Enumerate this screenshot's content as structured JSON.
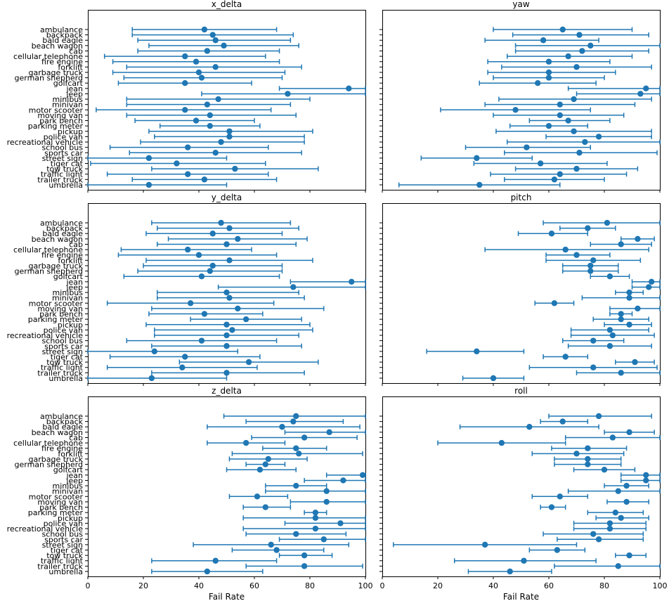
{
  "chart_data": {
    "type": "errorbar",
    "categories": [
      "ambulance",
      "backpack",
      "bald eagle",
      "beach wagon",
      "cab",
      "cellular telephone",
      "fire engine",
      "forklift",
      "garbage truck",
      "german shepherd",
      "golfcart",
      "jean",
      "jeep",
      "minibus",
      "minivan",
      "motor scooter",
      "moving van",
      "park bench",
      "parking meter",
      "pickup",
      "police van",
      "recreational vehicle",
      "school bus",
      "sports car",
      "street sign",
      "tiger cat",
      "tow truck",
      "traffic light",
      "trailer truck",
      "umbrella"
    ],
    "xlabel": "Fail Rate",
    "xlim": [
      0,
      100
    ],
    "xticks": [
      0,
      20,
      40,
      60,
      80,
      100
    ],
    "color": "#1f77b4",
    "panels": [
      {
        "title": "x_delta",
        "mean": [
          42,
          45,
          46,
          49,
          43,
          35,
          39,
          46,
          40,
          41,
          35,
          94,
          72,
          47,
          43,
          35,
          44,
          39,
          44,
          51,
          51,
          48,
          36,
          46,
          22,
          32,
          53,
          36,
          42,
          22
        ],
        "lower": [
          16,
          16,
          18,
          22,
          18,
          6,
          9,
          14,
          9,
          13,
          11,
          69,
          41,
          14,
          14,
          3,
          14,
          17,
          26,
          22,
          24,
          19,
          8,
          15,
          0,
          1,
          23,
          7,
          16,
          0
        ],
        "upper": [
          68,
          74,
          73,
          76,
          69,
          64,
          69,
          77,
          71,
          70,
          59,
          100,
          100,
          80,
          73,
          66,
          75,
          60,
          62,
          81,
          78,
          78,
          65,
          77,
          50,
          64,
          83,
          65,
          68,
          50
        ]
      },
      {
        "title": "yaw",
        "mean": [
          65,
          71,
          58,
          75,
          72,
          67,
          60,
          70,
          60,
          60,
          56,
          95,
          93,
          69,
          64,
          48,
          64,
          67,
          60,
          69,
          78,
          73,
          52,
          71,
          34,
          57,
          70,
          64,
          62,
          35
        ],
        "lower": [
          40,
          47,
          37,
          48,
          48,
          45,
          38,
          43,
          38,
          40,
          35,
          67,
          70,
          42,
          37,
          21,
          40,
          53,
          46,
          41,
          59,
          45,
          30,
          44,
          14,
          33,
          48,
          39,
          44,
          6
        ],
        "upper": [
          90,
          96,
          78,
          100,
          96,
          90,
          82,
          97,
          84,
          80,
          77,
          100,
          100,
          97,
          91,
          75,
          87,
          82,
          74,
          97,
          97,
          100,
          75,
          99,
          54,
          81,
          92,
          88,
          80,
          64
        ]
      },
      {
        "title": "y_delta",
        "mean": [
          48,
          51,
          45,
          54,
          50,
          36,
          40,
          51,
          45,
          44,
          41,
          95,
          74,
          50,
          51,
          37,
          54,
          42,
          57,
          50,
          52,
          50,
          41,
          50,
          24,
          35,
          58,
          34,
          50,
          23
        ],
        "lower": [
          23,
          25,
          21,
          29,
          25,
          12,
          11,
          21,
          20,
          18,
          13,
          73,
          47,
          25,
          25,
          7,
          23,
          22,
          37,
          21,
          24,
          24,
          14,
          23,
          0,
          8,
          33,
          7,
          23,
          0
        ],
        "upper": [
          73,
          76,
          70,
          79,
          75,
          59,
          68,
          81,
          70,
          70,
          69,
          100,
          100,
          76,
          78,
          67,
          85,
          63,
          77,
          80,
          81,
          76,
          68,
          77,
          54,
          62,
          83,
          61,
          78,
          50
        ]
      },
      {
        "title": "pitch",
        "mean": [
          81,
          74,
          61,
          92,
          86,
          66,
          70,
          76,
          75,
          75,
          82,
          97,
          96,
          89,
          89,
          62,
          92,
          86,
          86,
          89,
          82,
          83,
          76,
          82,
          34,
          66,
          91,
          76,
          86,
          40
        ],
        "lower": [
          58,
          64,
          49,
          86,
          75,
          37,
          59,
          59,
          65,
          65,
          75,
          90,
          90,
          84,
          72,
          55,
          82,
          82,
          76,
          80,
          68,
          68,
          65,
          67,
          16,
          58,
          84,
          53,
          70,
          29
        ],
        "upper": [
          100,
          84,
          74,
          98,
          97,
          96,
          82,
          93,
          85,
          85,
          89,
          100,
          100,
          94,
          100,
          69,
          100,
          90,
          96,
          97,
          96,
          98,
          87,
          97,
          51,
          74,
          98,
          99,
          100,
          51
        ]
      },
      {
        "title": "z_delta",
        "mean": [
          75,
          74,
          70,
          87,
          78,
          57,
          75,
          76,
          65,
          64,
          62,
          99,
          92,
          75,
          86,
          61,
          86,
          64,
          82,
          82,
          91,
          82,
          75,
          85,
          66,
          68,
          78,
          46,
          78,
          43
        ],
        "lower": [
          49,
          57,
          43,
          71,
          59,
          43,
          63,
          52,
          51,
          57,
          50,
          86,
          78,
          64,
          64,
          51,
          73,
          56,
          78,
          56,
          71,
          56,
          57,
          69,
          38,
          52,
          69,
          23,
          57,
          23
        ],
        "upper": [
          100,
          92,
          98,
          100,
          97,
          71,
          86,
          99,
          79,
          71,
          75,
          100,
          100,
          86,
          100,
          72,
          100,
          73,
          86,
          100,
          100,
          100,
          93,
          100,
          94,
          85,
          88,
          68,
          99,
          63
        ]
      },
      {
        "title": "roll",
        "mean": [
          78,
          65,
          53,
          89,
          83,
          43,
          74,
          70,
          74,
          74,
          80,
          95,
          95,
          88,
          85,
          64,
          88,
          61,
          84,
          86,
          82,
          82,
          76,
          78,
          37,
          63,
          89,
          51,
          85,
          46
        ],
        "lower": [
          60,
          57,
          28,
          80,
          66,
          20,
          61,
          54,
          62,
          62,
          69,
          86,
          86,
          80,
          67,
          54,
          81,
          57,
          74,
          77,
          69,
          69,
          58,
          63,
          4,
          53,
          84,
          26,
          62,
          31
        ],
        "upper": [
          97,
          74,
          78,
          98,
          100,
          66,
          88,
          87,
          86,
          86,
          91,
          100,
          100,
          96,
          100,
          74,
          96,
          66,
          94,
          96,
          95,
          95,
          94,
          94,
          70,
          73,
          95,
          77,
          100,
          61
        ]
      }
    ]
  }
}
